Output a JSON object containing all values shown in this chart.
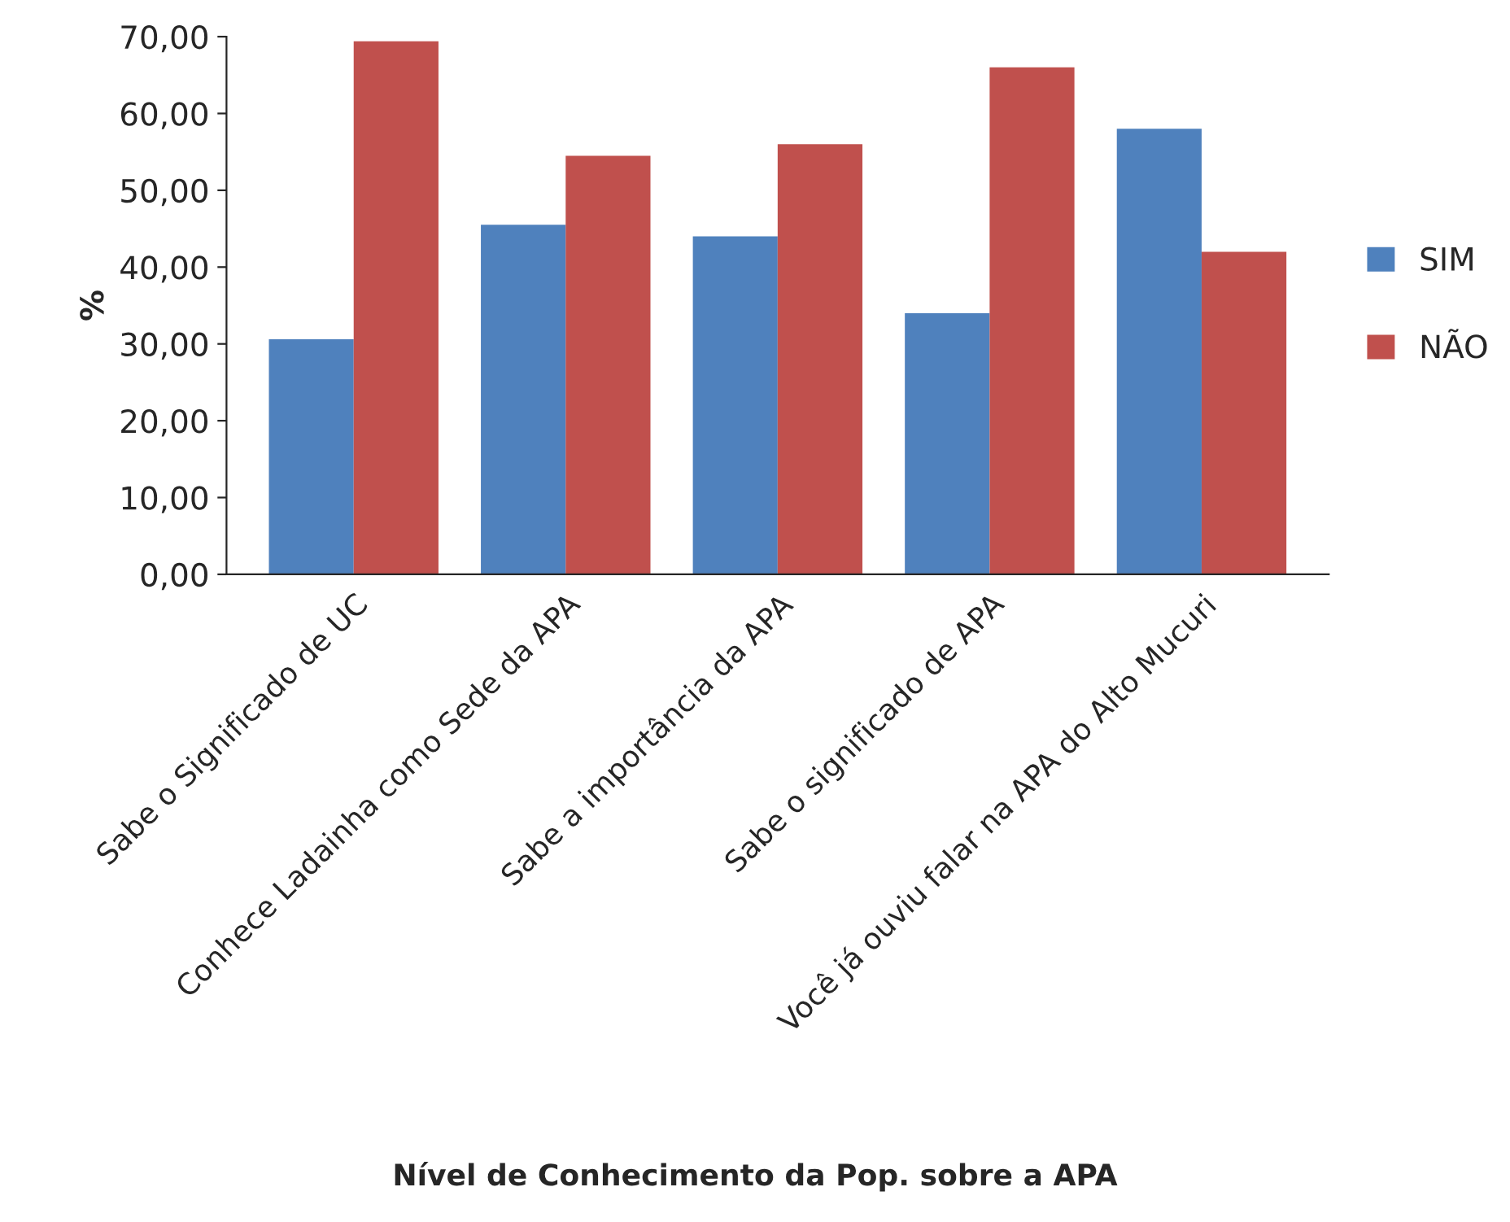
{
  "chart_data": {
    "type": "bar",
    "xlabel": "Nível de Conhecimento da Pop. sobre a APA",
    "ylabel": "%",
    "categories": [
      "Sabe o Significado de UC",
      "Conhece Ladainha como Sede da APA",
      "Sabe a importância da APA",
      "Sabe o significado de APA",
      "Você já ouviu falar na APA do Alto Mucuri"
    ],
    "series": [
      {
        "name": "SIM",
        "color": "#4f81bd",
        "values": [
          30.6,
          45.5,
          44.0,
          34.0,
          58.0
        ]
      },
      {
        "name": "NÃO",
        "color": "#c0504d",
        "values": [
          69.4,
          54.5,
          56.0,
          66.0,
          42.0
        ]
      }
    ],
    "ylim": [
      0,
      70
    ],
    "yticks": [
      {
        "value": 0,
        "label": "0,00"
      },
      {
        "value": 10,
        "label": "10,00"
      },
      {
        "value": 20,
        "label": "20,00"
      },
      {
        "value": 30,
        "label": "30,00"
      },
      {
        "value": 40,
        "label": "40,00"
      },
      {
        "value": 50,
        "label": "50,00"
      },
      {
        "value": 60,
        "label": "60,00"
      },
      {
        "value": 70,
        "label": "70,00"
      }
    ],
    "grid": false,
    "legend": "right"
  }
}
